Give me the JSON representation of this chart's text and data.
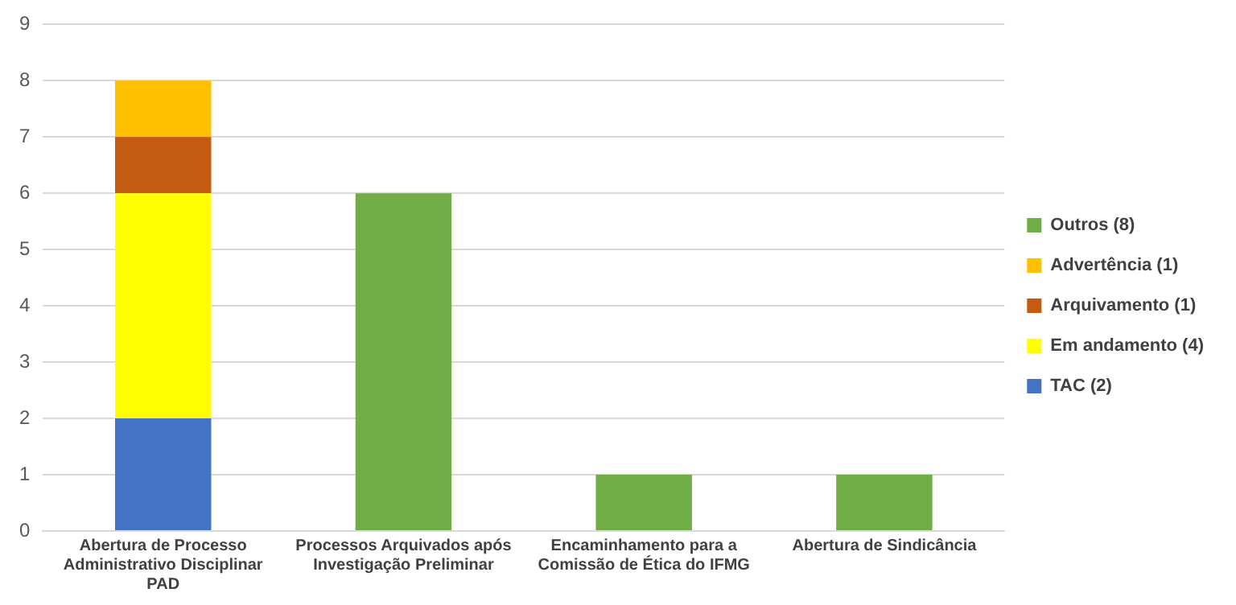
{
  "chart_data": {
    "type": "bar",
    "stacked": true,
    "categories": [
      "Abertura de Processo Administrativo Disciplinar PAD",
      "Processos Arquivados após Investigação Preliminar",
      "Encaminhamento para a Comissão de Ética do IFMG",
      "Abertura de Sindicância"
    ],
    "series": [
      {
        "name": "TAC (2)",
        "color": "#4472c4",
        "values": [
          2,
          null,
          null,
          null
        ]
      },
      {
        "name": "Em andamento (4)",
        "color": "#ffff00",
        "values": [
          4,
          null,
          null,
          null
        ]
      },
      {
        "name": "Arquivamento (1)",
        "color": "#c55a11",
        "values": [
          1,
          null,
          null,
          null
        ]
      },
      {
        "name": "Advertência (1)",
        "color": "#ffc000",
        "values": [
          1,
          null,
          null,
          null
        ]
      },
      {
        "name": "Outros (8)",
        "color": "#70ad47",
        "values": [
          null,
          6,
          1,
          1
        ]
      }
    ],
    "ylim": [
      0,
      9
    ],
    "yticks": [
      0,
      1,
      2,
      3,
      4,
      5,
      6,
      7,
      8,
      9
    ],
    "grid": "y",
    "legend": "right"
  }
}
